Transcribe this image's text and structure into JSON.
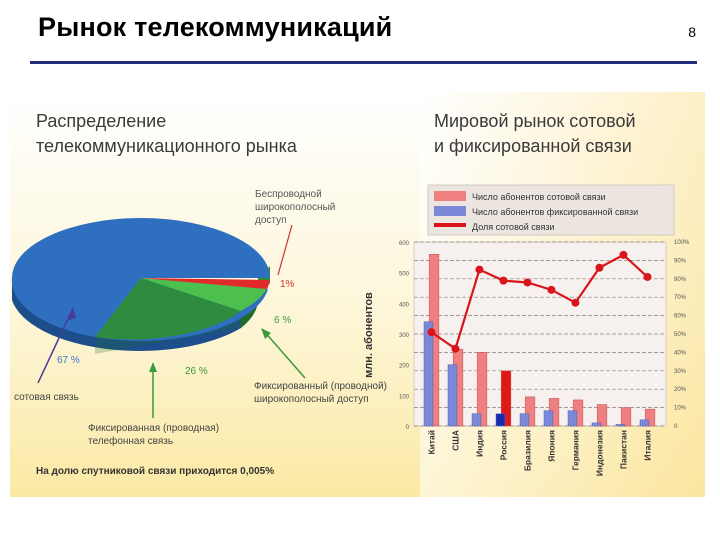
{
  "slide": {
    "title": "Рынок телекоммуникаций",
    "number": "8"
  },
  "colors": {
    "pie_mobile": "#2e6fbf",
    "pie_fixed_phone": "#2e8c3e",
    "pie_fixed_bb": "#4cbf4c",
    "pie_wireless": "#e02a2a",
    "bar_mobile": "#f08080",
    "bar_fixed": "#7b88d8",
    "line_share": "#d9141a",
    "title_rule": "#1f2d7a"
  },
  "chart_data": [
    {
      "type": "pie",
      "title": "Распределение телекоммуникационного рынка",
      "slices": [
        {
          "label": "сотовая связь",
          "value": 67,
          "value_label": "67 %"
        },
        {
          "label": "Фиксированная (проводная) телефонная связь",
          "value": 26,
          "value_label": "26 %"
        },
        {
          "label": "Фиксированный (проводной) широкополосный доступ",
          "value": 6,
          "value_label": "6 %"
        },
        {
          "label": "Беспроводной широкополосный доступ",
          "value": 1,
          "value_label": "1%"
        }
      ],
      "footnote": "На долю спутниковой связи приходится 0,005%"
    },
    {
      "type": "bar",
      "title": "Мировой рынок сотовой и фиксированной связи",
      "ylabel": "млн. абонентов",
      "ylim": [
        0,
        600
      ],
      "y_ticks": [
        "0",
        "100",
        "200",
        "300",
        "400",
        "500",
        "600"
      ],
      "y2lim": [
        0,
        100
      ],
      "y2_ticks": [
        "0",
        "10%",
        "20%",
        "30%",
        "40%",
        "50%",
        "60%",
        "70%",
        "80%",
        "90%",
        "100%"
      ],
      "legend": [
        "Число абонентов сотовой связи",
        "Число абонентов фиксированной связи",
        "Доля сотовой связи"
      ],
      "categories": [
        "Китай",
        "США",
        "Индия",
        "Россия",
        "Бразилия",
        "Япония",
        "Германия",
        "Индонезия",
        "Пакистан",
        "Италия"
      ],
      "series": [
        {
          "name": "Число абонентов сотовой связи",
          "kind": "bar",
          "values": [
            560,
            250,
            240,
            180,
            95,
            90,
            85,
            70,
            60,
            55
          ]
        },
        {
          "name": "Число абонентов фиксированной связи",
          "kind": "bar",
          "values": [
            340,
            200,
            40,
            40,
            40,
            50,
            50,
            10,
            5,
            20
          ]
        },
        {
          "name": "Доля сотовой связи",
          "kind": "line",
          "axis": "right",
          "values": [
            51,
            42,
            85,
            79,
            78,
            74,
            67,
            86,
            93,
            81
          ]
        }
      ]
    }
  ]
}
